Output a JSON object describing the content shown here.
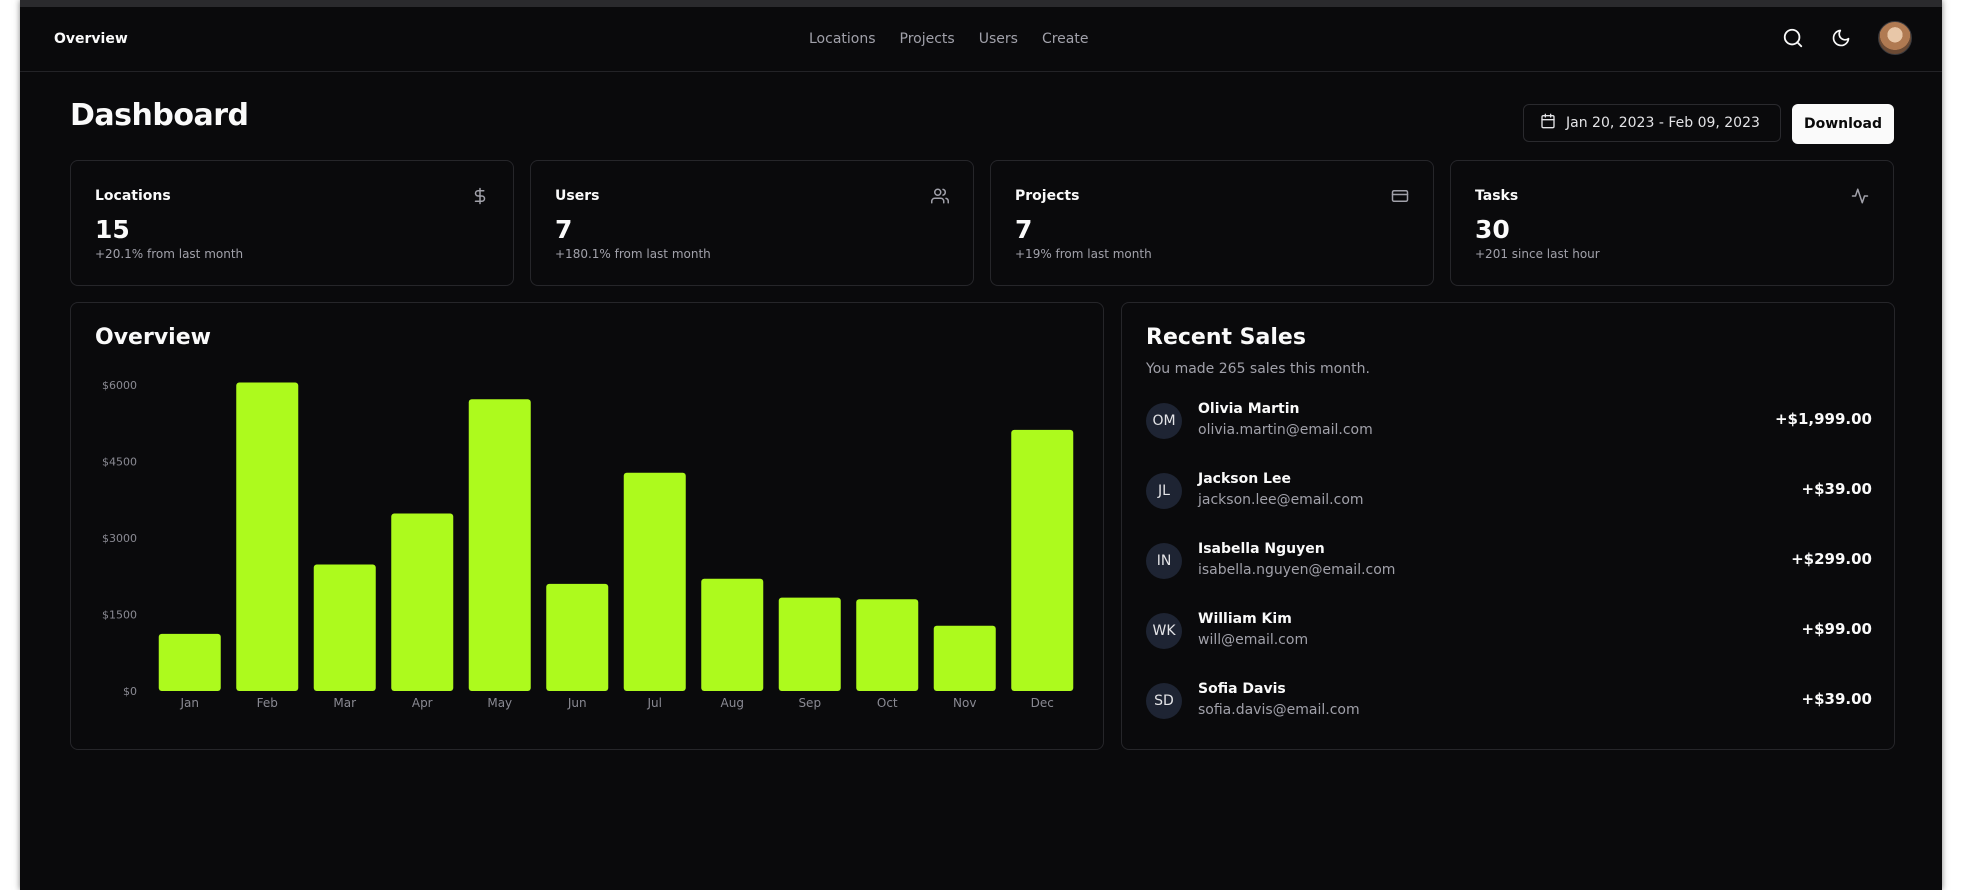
{
  "nav": {
    "brand": "Overview",
    "links": [
      "Locations",
      "Projects",
      "Users",
      "Create"
    ],
    "icons": [
      "search-icon",
      "moon-icon",
      "avatar"
    ]
  },
  "header": {
    "title": "Dashboard",
    "date_range": "Jan 20, 2023 - Feb 09, 2023",
    "download_label": "Download"
  },
  "stats": [
    {
      "label": "Locations",
      "value": "15",
      "sub": "+20.1% from last month",
      "icon": "dollar-icon"
    },
    {
      "label": "Users",
      "value": "7",
      "sub": "+180.1% from last month",
      "icon": "users-icon"
    },
    {
      "label": "Projects",
      "value": "7",
      "sub": "+19% from last month",
      "icon": "credit-card-icon"
    },
    {
      "label": "Tasks",
      "value": "30",
      "sub": "+201 since last hour",
      "icon": "activity-icon"
    }
  ],
  "overview": {
    "title": "Overview"
  },
  "chart_data": {
    "type": "bar",
    "categories": [
      "Jan",
      "Feb",
      "Mar",
      "Apr",
      "May",
      "Jun",
      "Jul",
      "Aug",
      "Sep",
      "Oct",
      "Nov",
      "Dec"
    ],
    "values": [
      1120,
      6050,
      2480,
      3480,
      5720,
      2100,
      4280,
      2200,
      1830,
      1800,
      1280,
      5120
    ],
    "yticks": [
      "$0",
      "$1500",
      "$3000",
      "$4500",
      "$6000"
    ],
    "ylim": [
      0,
      6000
    ],
    "bar_color": "#adfa1d",
    "title": "",
    "xlabel": "",
    "ylabel": ""
  },
  "sales": {
    "title": "Recent Sales",
    "subtitle": "You made 265 sales this month.",
    "rows": [
      {
        "initials": "OM",
        "name": "Olivia Martin",
        "email": "olivia.martin@email.com",
        "amount": "+$1,999.00"
      },
      {
        "initials": "JL",
        "name": "Jackson Lee",
        "email": "jackson.lee@email.com",
        "amount": "+$39.00"
      },
      {
        "initials": "IN",
        "name": "Isabella Nguyen",
        "email": "isabella.nguyen@email.com",
        "amount": "+$299.00"
      },
      {
        "initials": "WK",
        "name": "William Kim",
        "email": "will@email.com",
        "amount": "+$99.00"
      },
      {
        "initials": "SD",
        "name": "Sofia Davis",
        "email": "sofia.davis@email.com",
        "amount": "+$39.00"
      }
    ]
  },
  "colors": {
    "background": "#0a0a0c",
    "accent": "#adfa1d",
    "border": "#26262a",
    "muted": "#a1a1aa"
  }
}
